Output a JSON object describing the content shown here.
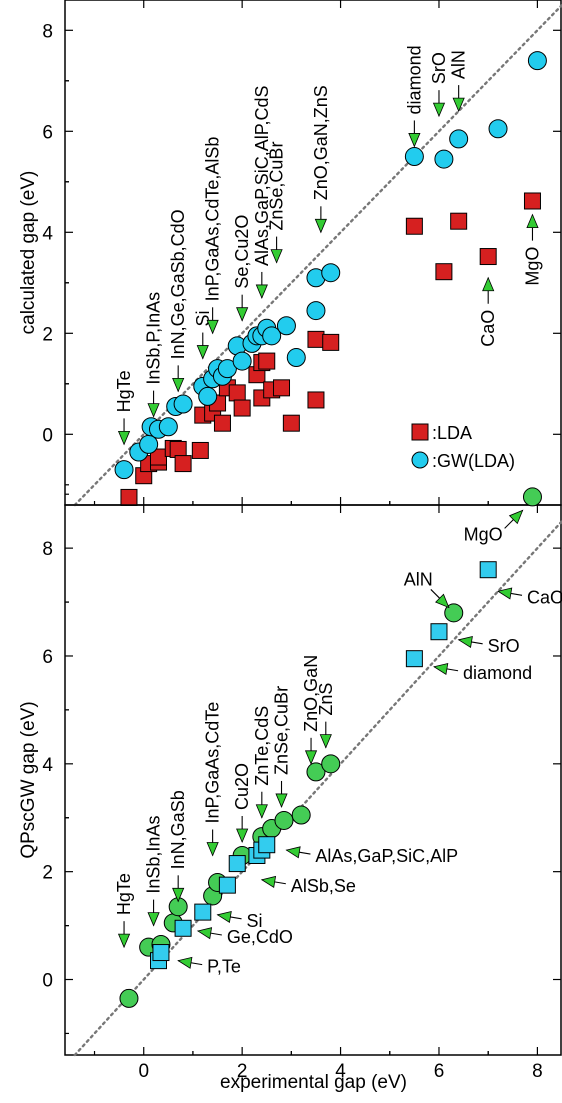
{
  "chart_data": [
    {
      "type": "scatter",
      "ylabel": "calculated gap (eV)",
      "xlabel": "",
      "xlim": [
        -1.6,
        8.5
      ],
      "ylim": [
        -1.4,
        8.6
      ],
      "xticks": [
        0,
        2,
        4,
        6,
        8
      ],
      "yticks": [
        0,
        2,
        4,
        6,
        8
      ],
      "grid": false,
      "diagonal": "y=x dotted line",
      "legend_position": "bottom-right",
      "series": [
        {
          "name": ":LDA",
          "marker": "square",
          "color": "#d62020",
          "points": [
            [
              -0.3,
              -1.25
            ],
            [
              0.0,
              -0.82
            ],
            [
              0.1,
              -0.58
            ],
            [
              0.3,
              -0.55
            ],
            [
              0.3,
              -0.45
            ],
            [
              0.6,
              -0.28
            ],
            [
              0.7,
              -0.3
            ],
            [
              0.8,
              -0.58
            ],
            [
              1.2,
              0.38
            ],
            [
              1.15,
              -0.32
            ],
            [
              1.4,
              0.42
            ],
            [
              1.5,
              0.62
            ],
            [
              1.6,
              0.22
            ],
            [
              1.7,
              0.92
            ],
            [
              1.9,
              0.82
            ],
            [
              2.0,
              0.52
            ],
            [
              2.3,
              1.18
            ],
            [
              2.4,
              1.42
            ],
            [
              2.4,
              0.72
            ],
            [
              2.5,
              1.45
            ],
            [
              2.6,
              0.88
            ],
            [
              2.8,
              0.92
            ],
            [
              3.0,
              0.22
            ],
            [
              3.5,
              1.88
            ],
            [
              3.5,
              0.68
            ],
            [
              3.8,
              1.82
            ],
            [
              5.5,
              4.12
            ],
            [
              6.1,
              3.22
            ],
            [
              6.4,
              4.22
            ],
            [
              7.0,
              3.52
            ],
            [
              7.9,
              4.62
            ]
          ]
        },
        {
          "name": ":GW(LDA)",
          "marker": "circle",
          "color": "#22ccee",
          "points": [
            [
              -0.4,
              -0.7
            ],
            [
              -0.1,
              -0.35
            ],
            [
              0.1,
              -0.2
            ],
            [
              0.15,
              0.15
            ],
            [
              0.3,
              0.1
            ],
            [
              0.5,
              0.15
            ],
            [
              0.65,
              0.55
            ],
            [
              0.8,
              0.6
            ],
            [
              1.2,
              0.95
            ],
            [
              1.3,
              0.75
            ],
            [
              1.4,
              1.1
            ],
            [
              1.5,
              1.3
            ],
            [
              1.6,
              1.15
            ],
            [
              1.7,
              1.3
            ],
            [
              1.9,
              1.75
            ],
            [
              2.0,
              1.45
            ],
            [
              2.2,
              1.8
            ],
            [
              2.3,
              1.95
            ],
            [
              2.4,
              1.95
            ],
            [
              2.5,
              2.1
            ],
            [
              2.6,
              1.95
            ],
            [
              2.9,
              2.15
            ],
            [
              3.1,
              1.52
            ],
            [
              3.5,
              2.45
            ],
            [
              3.5,
              3.1
            ],
            [
              3.8,
              3.2
            ],
            [
              5.5,
              5.5
            ],
            [
              6.1,
              5.45
            ],
            [
              6.4,
              5.85
            ],
            [
              7.2,
              6.05
            ],
            [
              8.0,
              7.4
            ]
          ]
        }
      ],
      "annotations": [
        {
          "text": "HgTe",
          "x": -0.4,
          "y": -0.2,
          "dir": "down"
        },
        {
          "text": "InSb,P,InAs",
          "x": 0.2,
          "y": 0.35,
          "dir": "down"
        },
        {
          "text": "InN,Ge,GaSb,CdO",
          "x": 0.7,
          "y": 0.85,
          "dir": "down"
        },
        {
          "text": "Si",
          "x": 1.2,
          "y": 1.5,
          "dir": "down"
        },
        {
          "text": "InP,GaAs,CdTe,AlSb",
          "x": 1.4,
          "y": 2.0,
          "dir": "down"
        },
        {
          "text": "Se,Cu2O",
          "x": 2.0,
          "y": 2.25,
          "dir": "down"
        },
        {
          "text": "AlAs,GaP,SiC,AlP,CdS",
          "x": 2.4,
          "y": 2.7,
          "dir": "down"
        },
        {
          "text": "ZnSe,CuBr",
          "x": 2.7,
          "y": 3.4,
          "dir": "down"
        },
        {
          "text": "ZnO,GaN,ZnS",
          "x": 3.6,
          "y": 4.0,
          "dir": "down"
        },
        {
          "text": "diamond",
          "x": 5.5,
          "y": 5.7,
          "dir": "down"
        },
        {
          "text": "SrO",
          "x": 6.0,
          "y": 6.3,
          "dir": "down"
        },
        {
          "text": "AlN",
          "x": 6.4,
          "y": 6.4,
          "dir": "down"
        },
        {
          "text": "CaO",
          "x": 7.0,
          "y": 3.1,
          "dir": "up"
        },
        {
          "text": "MgO",
          "x": 7.9,
          "y": 4.35,
          "dir": "up"
        }
      ]
    },
    {
      "type": "scatter",
      "ylabel": "QPscGW gap (eV)",
      "xlabel": "experimental gap (eV)",
      "xlim": [
        -1.6,
        8.5
      ],
      "ylim": [
        -1.4,
        8.8
      ],
      "xticks": [
        0,
        2,
        4,
        6,
        8
      ],
      "yticks": [
        0,
        2,
        4,
        6,
        8
      ],
      "xticklabels": [
        "0",
        "2",
        "4",
        "6",
        "8"
      ],
      "grid": false,
      "diagonal": "y=x dotted line",
      "series": [
        {
          "name": "",
          "marker": "circle",
          "color": "#44cc55",
          "points": [
            [
              -0.3,
              -0.35
            ],
            [
              0.1,
              0.6
            ],
            [
              0.35,
              0.65
            ],
            [
              0.6,
              1.05
            ],
            [
              0.7,
              1.35
            ],
            [
              1.4,
              1.55
            ],
            [
              1.5,
              1.8
            ],
            [
              2.0,
              2.3
            ],
            [
              2.4,
              2.65
            ],
            [
              2.6,
              2.8
            ],
            [
              2.85,
              2.95
            ],
            [
              3.2,
              3.05
            ],
            [
              3.5,
              3.85
            ],
            [
              3.8,
              4.0
            ],
            [
              6.3,
              6.8
            ],
            [
              7.9,
              8.95
            ]
          ]
        },
        {
          "name": "",
          "marker": "square",
          "color": "#33ccee",
          "points": [
            [
              0.3,
              0.35
            ],
            [
              0.35,
              0.5
            ],
            [
              0.8,
              0.95
            ],
            [
              1.2,
              1.25
            ],
            [
              1.7,
              1.75
            ],
            [
              1.9,
              2.15
            ],
            [
              2.3,
              2.3
            ],
            [
              2.4,
              2.4
            ],
            [
              2.5,
              2.5
            ],
            [
              5.5,
              5.95
            ],
            [
              6.0,
              6.45
            ],
            [
              7.0,
              7.6
            ]
          ]
        }
      ],
      "annotations": [
        {
          "text": "HgTe",
          "x": -0.4,
          "y": 0.6,
          "dir": "down"
        },
        {
          "text": "InSb,InAs",
          "x": 0.2,
          "y": 1.0,
          "dir": "down"
        },
        {
          "text": "InN,GaSb",
          "x": 0.7,
          "y": 1.45,
          "dir": "down"
        },
        {
          "text": "InP,GaAs,CdTe",
          "x": 1.4,
          "y": 2.3,
          "dir": "down"
        },
        {
          "text": "Cu2O",
          "x": 2.0,
          "y": 2.55,
          "dir": "down"
        },
        {
          "text": "ZnTe,CdS",
          "x": 2.4,
          "y": 3.0,
          "dir": "down"
        },
        {
          "text": "ZnSe,CuBr",
          "x": 2.8,
          "y": 3.2,
          "dir": "down"
        },
        {
          "text": "ZnO,GaN",
          "x": 3.4,
          "y": 4.0,
          "dir": "down"
        },
        {
          "text": "ZnS",
          "x": 3.7,
          "y": 4.3,
          "dir": "down"
        },
        {
          "text": "MgO",
          "x": 7.7,
          "y": 8.7,
          "dir": "up-right"
        },
        {
          "text": "AlN",
          "x": 6.2,
          "y": 6.9,
          "dir": "down-right"
        },
        {
          "text": "CaO",
          "x": 7.2,
          "y": 7.2,
          "dir": "left"
        },
        {
          "text": "SrO",
          "x": 6.4,
          "y": 6.3,
          "dir": "left"
        },
        {
          "text": "diamond",
          "x": 5.9,
          "y": 5.8,
          "dir": "left"
        },
        {
          "text": "AlAs,GaP,SiC,AlP",
          "x": 2.9,
          "y": 2.4,
          "dir": "left"
        },
        {
          "text": "AlSb,Se",
          "x": 2.4,
          "y": 1.85,
          "dir": "left"
        },
        {
          "text": "Si",
          "x": 1.5,
          "y": 1.2,
          "dir": "left"
        },
        {
          "text": "Ge,CdO",
          "x": 1.1,
          "y": 0.9,
          "dir": "left"
        },
        {
          "text": "P,Te",
          "x": 0.7,
          "y": 0.35,
          "dir": "left"
        }
      ]
    }
  ]
}
